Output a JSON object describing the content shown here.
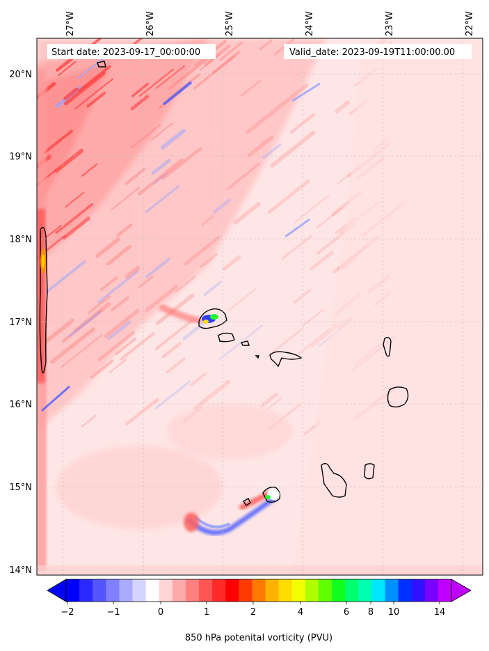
{
  "header": {
    "start_date": "Start date: 2023-09-17_00:00:00",
    "valid_date": "Valid_date: 2023-09-19T11:00:00.00"
  },
  "axes": {
    "lon_labels": [
      "27°W",
      "26°W",
      "25°W",
      "24°W",
      "23°W",
      "22°W"
    ],
    "lat_labels": [
      "20°N",
      "19°N",
      "18°N",
      "17°N",
      "16°N",
      "15°N",
      "14°N"
    ]
  },
  "colorbar": {
    "label": "850 hPa potenital vorticity (PVU)",
    "tick_labels": [
      "−2",
      "−1",
      "0",
      "1",
      "2",
      "4",
      "6",
      "8",
      "10",
      "14"
    ],
    "colors": [
      "#0000ff",
      "#2a2aff",
      "#5555ff",
      "#7f7fff",
      "#aaaaff",
      "#d4d4ff",
      "#ffffff",
      "#ffd4d4",
      "#ffaaaa",
      "#ff7f7f",
      "#ff5555",
      "#ff2a2a",
      "#ff0000",
      "#ff3a00",
      "#ff7a00",
      "#ffb300",
      "#ffdd00",
      "#f2ff00",
      "#b0ff00",
      "#60ff00",
      "#10ff20",
      "#00ff70",
      "#00ffb0",
      "#00e8ff",
      "#0090ff",
      "#0030ff",
      "#3010ff",
      "#7a00ff",
      "#c000ff"
    ]
  },
  "map": {
    "background_color": "#ffe6e6",
    "islands": [
      "Santo Antão",
      "São Vicente",
      "Santa Luzia",
      "São Nicolau",
      "Sal",
      "Boa Vista",
      "Maio",
      "Santiago",
      "Fogo",
      "Brava"
    ]
  }
}
